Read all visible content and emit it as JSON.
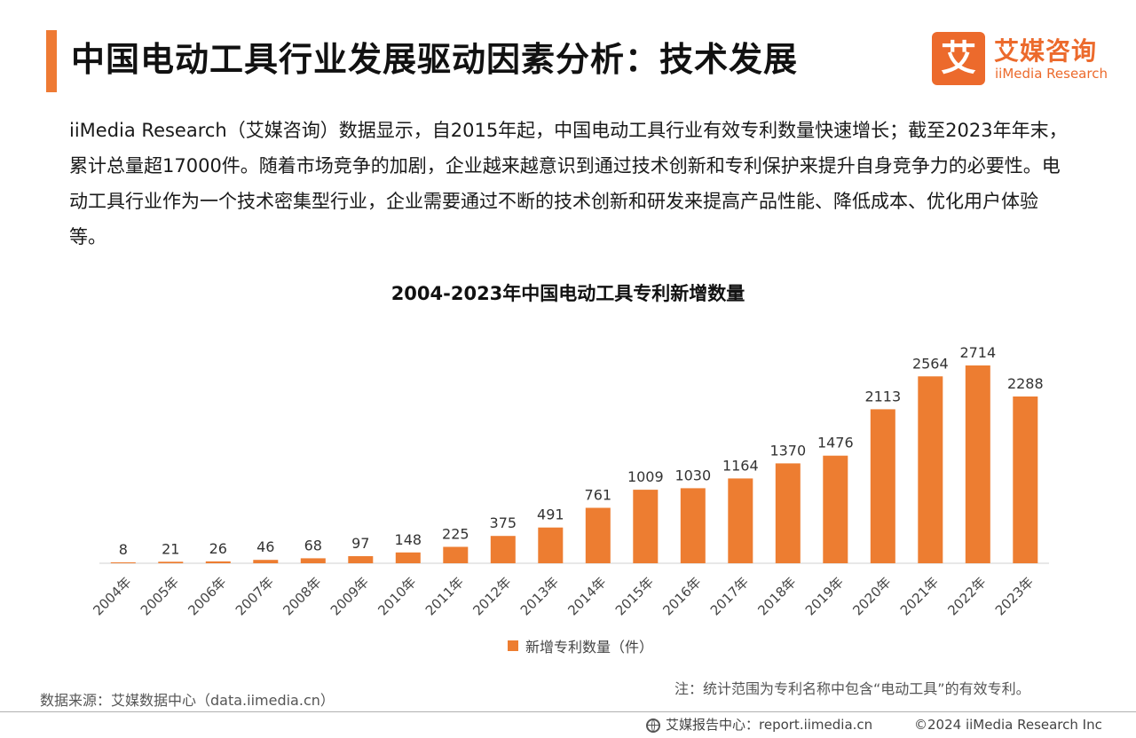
{
  "header": {
    "title": "中国电动工具行业发展驱动因素分析：技术发展",
    "logo_mark": "艾",
    "logo_cn": "艾媒咨询",
    "logo_en": "iiMedia Research",
    "accent_color": "#ee7a34"
  },
  "intro": "iiMedia Research（艾媒咨询）数据显示，自2015年起，中国电动工具行业有效专利数量快速增长；截至2023年年末，累计总量超17000件。随着市场竞争的加剧，企业越来越意识到通过技术创新和专利保护来提升自身竞争力的必要性。电动工具行业作为一个技术密集型行业，企业需要通过不断的技术创新和研发来提高产品性能、降低成本、优化用户体验等。",
  "chart_data": {
    "type": "bar",
    "title": "2004-2023年中国电动工具专利新增数量",
    "categories": [
      "2004年",
      "2005年",
      "2006年",
      "2007年",
      "2008年",
      "2009年",
      "2010年",
      "2011年",
      "2012年",
      "2013年",
      "2014年",
      "2015年",
      "2016年",
      "2017年",
      "2018年",
      "2019年",
      "2020年",
      "2021年",
      "2022年",
      "2023年"
    ],
    "series": [
      {
        "name": "新增专利数量（件）",
        "values": [
          8,
          21,
          26,
          46,
          68,
          97,
          148,
          225,
          375,
          491,
          761,
          1009,
          1030,
          1164,
          1370,
          1476,
          2113,
          2564,
          2714,
          2288
        ]
      }
    ],
    "xlabel": "",
    "ylabel": "",
    "ylim": [
      0,
      2714
    ],
    "grid": false,
    "legend": "bottom",
    "bar_color": "#ed7d31"
  },
  "source": "数据来源：艾媒数据中心（data.iimedia.cn）",
  "note": "注：统计范围为专利名称中包含“电动工具”的有效专利。",
  "footer": {
    "report_site": "艾媒报告中心：report.iimedia.cn",
    "copyright": "©2024  iiMedia Research  Inc"
  }
}
